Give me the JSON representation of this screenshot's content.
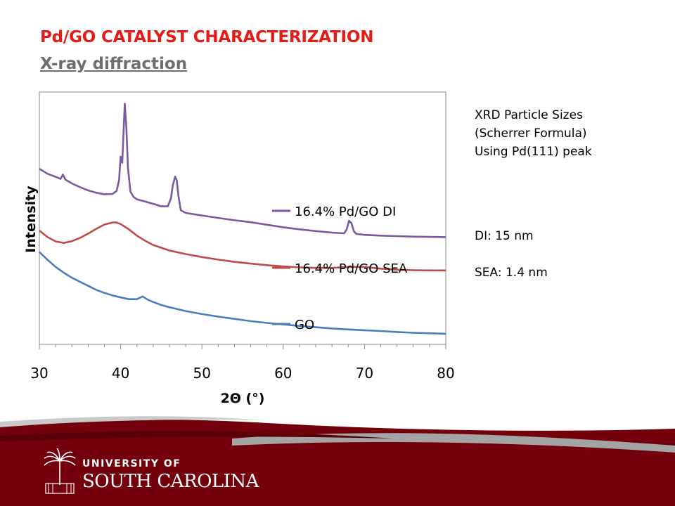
{
  "slide": {
    "title": "Pd/GO CATALYST CHARACTERIZATION",
    "subtitle": "X-ray diffraction"
  },
  "notes": {
    "sizes_heading": [
      "XRD Particle Sizes",
      "(Scherrer Formula)",
      "Using Pd(111) peak"
    ],
    "results": [
      "DI: 15 nm",
      "SEA: 1.4 nm"
    ]
  },
  "branding": {
    "line1": "UNIVERSITY OF",
    "line2": "SOUTH CAROLINA",
    "garnet": "#73000a"
  },
  "chart_data": {
    "type": "line",
    "xlabel": "2Θ (°)",
    "ylabel": "Intensity",
    "xlim": [
      30,
      80
    ],
    "ylim": [
      0,
      100
    ],
    "x_ticks": [
      30,
      40,
      50,
      60,
      70,
      80
    ],
    "y_ticks_shown": false,
    "grid": false,
    "legend_position": "inline-right",
    "series": [
      {
        "name": "16.4% Pd/GO DI",
        "color": "#7b59a1",
        "points": [
          [
            30,
            69.6
          ],
          [
            31,
            67.6
          ],
          [
            32,
            66.4
          ],
          [
            32.6,
            65.6
          ],
          [
            32.9,
            67.3
          ],
          [
            33.2,
            65.3
          ],
          [
            34,
            63.8
          ],
          [
            35,
            62.3
          ],
          [
            36,
            61.0
          ],
          [
            37,
            60.1
          ],
          [
            38,
            59.5
          ],
          [
            39,
            59.6
          ],
          [
            39.5,
            60.8
          ],
          [
            39.8,
            65
          ],
          [
            40.0,
            74.4
          ],
          [
            40.2,
            72
          ],
          [
            40.3,
            80
          ],
          [
            40.5,
            95.4
          ],
          [
            40.7,
            86
          ],
          [
            40.9,
            70
          ],
          [
            41.2,
            60.5
          ],
          [
            41.6,
            58.4
          ],
          [
            42,
            57.5
          ],
          [
            43,
            56.6
          ],
          [
            44,
            55.7
          ],
          [
            45,
            54.7
          ],
          [
            45.8,
            54.7
          ],
          [
            46.2,
            58
          ],
          [
            46.4,
            62.8
          ],
          [
            46.7,
            66.5
          ],
          [
            46.9,
            65
          ],
          [
            47.1,
            59
          ],
          [
            47.4,
            53.2
          ],
          [
            48,
            52.1
          ],
          [
            49,
            51.6
          ],
          [
            50,
            51.1
          ],
          [
            52,
            50.1
          ],
          [
            54,
            49.2
          ],
          [
            56,
            48.4
          ],
          [
            58,
            47.4
          ],
          [
            60,
            46.4
          ],
          [
            62,
            45.6
          ],
          [
            64,
            44.9
          ],
          [
            66,
            44.3
          ],
          [
            67.5,
            44.0
          ],
          [
            67.8,
            45.5
          ],
          [
            68.1,
            49.0
          ],
          [
            68.4,
            48.0
          ],
          [
            68.7,
            44.8
          ],
          [
            69,
            43.8
          ],
          [
            70,
            43.4
          ],
          [
            72,
            43.1
          ],
          [
            74,
            42.9
          ],
          [
            76,
            42.7
          ],
          [
            78,
            42.6
          ],
          [
            80,
            42.5
          ]
        ]
      },
      {
        "name": "16.4% Pd/GO SEA",
        "color": "#be4b48",
        "points": [
          [
            30,
            45.1
          ],
          [
            31,
            42.5
          ],
          [
            32,
            40.8
          ],
          [
            33,
            40.2
          ],
          [
            34,
            40.9
          ],
          [
            35,
            42.2
          ],
          [
            36,
            43.9
          ],
          [
            37,
            45.8
          ],
          [
            38,
            47.5
          ],
          [
            39,
            48.3
          ],
          [
            39.5,
            48.3
          ],
          [
            40,
            47.7
          ],
          [
            41,
            45.6
          ],
          [
            42,
            43.1
          ],
          [
            43,
            41.1
          ],
          [
            44,
            39.4
          ],
          [
            46,
            37.2
          ],
          [
            48,
            35.8
          ],
          [
            50,
            34.6
          ],
          [
            52,
            33.6
          ],
          [
            54,
            32.7
          ],
          [
            56,
            32.0
          ],
          [
            58,
            31.4
          ],
          [
            60,
            30.9
          ],
          [
            62,
            30.5
          ],
          [
            64,
            30.3
          ],
          [
            66,
            30.3
          ],
          [
            68,
            30.7
          ],
          [
            70,
            30.7
          ],
          [
            72,
            30.0
          ],
          [
            74,
            29.6
          ],
          [
            76,
            29.4
          ],
          [
            78,
            29.3
          ],
          [
            80,
            29.3
          ]
        ]
      },
      {
        "name": "GO",
        "color": "#4a7ebb",
        "points": [
          [
            30,
            36.6
          ],
          [
            31,
            33.5
          ],
          [
            32,
            30.7
          ],
          [
            33,
            28.4
          ],
          [
            34,
            26.4
          ],
          [
            35,
            24.8
          ],
          [
            36,
            23.2
          ],
          [
            37,
            21.6
          ],
          [
            38,
            20.4
          ],
          [
            39,
            19.4
          ],
          [
            40,
            18.6
          ],
          [
            41,
            17.9
          ],
          [
            42,
            17.9
          ],
          [
            42.7,
            19.0
          ],
          [
            43.4,
            17.6
          ],
          [
            44,
            16.8
          ],
          [
            45,
            15.6
          ],
          [
            46,
            14.7
          ],
          [
            48,
            13.2
          ],
          [
            50,
            12.0
          ],
          [
            52,
            11.0
          ],
          [
            54,
            10.1
          ],
          [
            56,
            9.2
          ],
          [
            58,
            8.5
          ],
          [
            60,
            7.9
          ],
          [
            62,
            7.3
          ],
          [
            64,
            6.8
          ],
          [
            66,
            6.3
          ],
          [
            68,
            5.9
          ],
          [
            70,
            5.6
          ],
          [
            72,
            5.3
          ],
          [
            74,
            4.9
          ],
          [
            76,
            4.6
          ],
          [
            78,
            4.4
          ],
          [
            80,
            4.2
          ]
        ]
      }
    ]
  }
}
